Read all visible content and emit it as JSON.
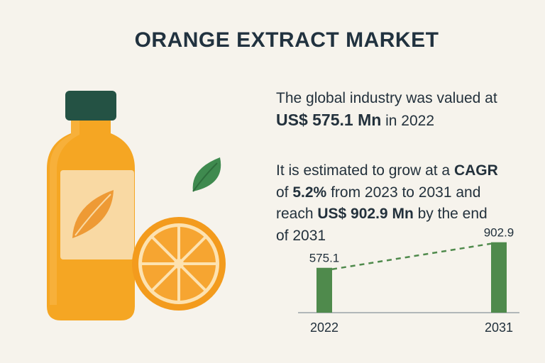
{
  "title": "ORANGE EXTRACT MARKET",
  "stats": {
    "line1": "The global industry was valued at",
    "value_2022": "US$ 575.1 Mn",
    "year_suffix": " in 2022",
    "grow_prefix": "It is estimated to grow at a ",
    "cagr_label": "CAGR",
    "of_word": "of ",
    "cagr_value": "5.2%",
    "period_text": " from 2023 to 2031 and",
    "reach_word": "reach ",
    "value_2031": "US$ 902.9 Mn",
    "end_text": " by the end",
    "end_year": "of 2031"
  },
  "colors": {
    "bar": "#4f8a4c",
    "dash": "#4f8a4c",
    "bottle": "#f5a623",
    "cap": "#245244",
    "leaf": "#3f8a4f",
    "orange": "#f39b1d"
  },
  "chart_data": {
    "type": "bar",
    "categories": [
      "2022",
      "2031"
    ],
    "values": [
      575.1,
      902.9
    ],
    "data_labels": [
      "575.1",
      "902.9"
    ],
    "trend_line": "dashed",
    "ylim": [
      0,
      1000
    ]
  }
}
